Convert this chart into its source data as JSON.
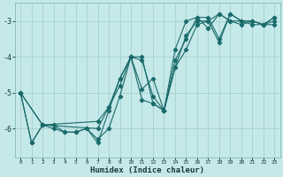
{
  "xlabel": "Humidex (Indice chaleur)",
  "ylabel": "",
  "bg_color": "#c5e8e8",
  "grid_color": "#a8d0d0",
  "line_color": "#1a6b6b",
  "xlim": [
    -0.5,
    23.5
  ],
  "ylim": [
    -6.8,
    -2.5
  ],
  "yticks": [
    -6,
    -5,
    -4,
    -3
  ],
  "xticks": [
    0,
    1,
    2,
    3,
    4,
    5,
    6,
    7,
    8,
    9,
    10,
    11,
    12,
    13,
    14,
    15,
    16,
    17,
    18,
    19,
    20,
    21,
    22,
    23
  ],
  "series1_x": [
    0,
    1,
    2,
    3,
    4,
    5,
    6,
    7,
    8,
    9,
    10,
    11,
    12,
    13,
    14,
    15,
    16,
    17,
    18,
    19,
    20,
    21,
    22,
    23
  ],
  "series1_y": [
    -5.0,
    -6.4,
    -5.9,
    -5.9,
    -6.1,
    -6.1,
    -6.0,
    -6.3,
    -6.0,
    -5.1,
    -4.0,
    -4.0,
    -5.3,
    -5.5,
    -4.3,
    -3.8,
    -3.1,
    -3.0,
    -2.8,
    -3.0,
    -3.1,
    -3.0,
    -3.1,
    -3.1
  ],
  "series2_x": [
    0,
    1,
    2,
    3,
    4,
    5,
    6,
    7,
    8,
    9,
    10,
    11,
    12,
    13,
    14,
    15,
    16,
    17,
    18,
    19,
    20,
    21,
    22,
    23
  ],
  "series2_y": [
    -5.0,
    -6.4,
    -5.9,
    -6.0,
    -6.1,
    -6.1,
    -6.0,
    -6.4,
    -5.5,
    -4.6,
    -4.0,
    -5.2,
    -5.3,
    -5.5,
    -4.1,
    -3.5,
    -2.9,
    -3.2,
    -2.8,
    -3.0,
    -3.0,
    -3.0,
    -3.1,
    -3.0
  ],
  "series3_x": [
    0,
    2,
    7,
    8,
    9,
    10,
    11,
    12,
    13,
    14,
    15,
    16,
    17,
    18,
    19,
    20,
    21,
    22,
    23
  ],
  "series3_y": [
    -5.0,
    -5.9,
    -5.8,
    -5.4,
    -4.6,
    -4.0,
    -4.9,
    -4.6,
    -5.5,
    -3.8,
    -3.0,
    -2.9,
    -2.9,
    -3.5,
    -2.8,
    -3.0,
    -3.0,
    -3.1,
    -2.9
  ],
  "series4_x": [
    0,
    2,
    7,
    8,
    9,
    10,
    11,
    12,
    13,
    14,
    15,
    16,
    17,
    18,
    19,
    20,
    21,
    22,
    23
  ],
  "series4_y": [
    -5.0,
    -5.9,
    -6.0,
    -5.4,
    -4.8,
    -4.0,
    -4.1,
    -5.1,
    -5.5,
    -4.3,
    -3.4,
    -3.0,
    -3.0,
    -3.6,
    -2.8,
    -3.0,
    -3.1,
    -3.1,
    -2.9
  ]
}
